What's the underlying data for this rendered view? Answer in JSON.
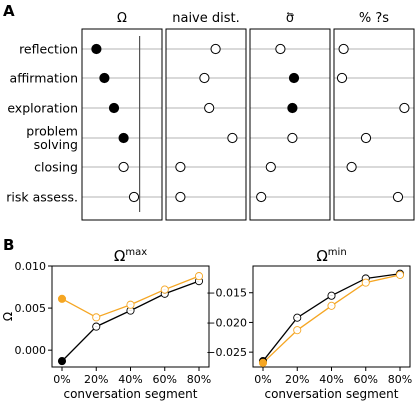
{
  "panelA": {
    "letter": "A",
    "row_labels": [
      [
        "reflection"
      ],
      [
        "affirmation"
      ],
      [
        "exploration"
      ],
      [
        "problem",
        "solving"
      ],
      [
        "closing"
      ],
      [
        "risk assess."
      ]
    ],
    "columns": [
      {
        "title": "Ω",
        "domain": [
          0,
          1
        ],
        "ref_line": 0.72,
        "values": [
          0.18,
          0.28,
          0.4,
          0.52,
          0.52,
          0.65
        ],
        "filled": [
          true,
          true,
          true,
          true,
          false,
          false
        ]
      },
      {
        "title": "naive dist.",
        "domain": [
          0,
          1
        ],
        "values": [
          0.62,
          0.48,
          0.54,
          0.83,
          0.18,
          0.18
        ],
        "filled": [
          false,
          false,
          false,
          false,
          false,
          false
        ]
      },
      {
        "title": "σ⃖",
        "domain": [
          0,
          1
        ],
        "values": [
          0.38,
          0.55,
          0.53,
          0.53,
          0.26,
          0.14
        ],
        "filled": [
          false,
          true,
          true,
          false,
          false,
          false
        ]
      },
      {
        "title": "% ?s",
        "domain": [
          0,
          1
        ],
        "values": [
          0.12,
          0.1,
          0.88,
          0.4,
          0.22,
          0.8
        ],
        "filled": [
          false,
          false,
          false,
          false,
          false,
          false
        ]
      }
    ]
  },
  "panelB": {
    "letter": "B"
  },
  "colors": {
    "black": "#000000",
    "orange": "#f5a623"
  },
  "chart_data": [
    {
      "type": "line",
      "title": "Ω^max",
      "title_base": "Ω",
      "title_sup": "max",
      "xlabel": "conversation segment",
      "ylabel": "Ω",
      "x": [
        "0%",
        "20%",
        "40%",
        "60%",
        "80%"
      ],
      "ylim": [
        -0.002,
        0.01
      ],
      "yticks": [
        0.0,
        0.005,
        0.01
      ],
      "ytick_labels": [
        "0.000",
        "0.005",
        "0.010"
      ],
      "series": [
        {
          "values": [
            -0.0013,
            0.0028,
            0.0047,
            0.0067,
            0.0082
          ],
          "color": "#000000",
          "marker": "split"
        },
        {
          "values": [
            0.0061,
            0.0039,
            0.0054,
            0.0072,
            0.0088
          ],
          "color": "#f5a623",
          "marker": "split"
        }
      ]
    },
    {
      "type": "line",
      "title": "Ω^min",
      "title_base": "Ω",
      "title_sup": "min",
      "xlabel": "conversation segment",
      "ylabel": "",
      "x": [
        "0%",
        "20%",
        "40%",
        "60%",
        "80%"
      ],
      "ylim": [
        -0.0275,
        -0.0105
      ],
      "yticks": [
        -0.025,
        -0.02,
        -0.015
      ],
      "ytick_labels": [
        "−0.025",
        "−0.020",
        "−0.015"
      ],
      "series": [
        {
          "values": [
            -0.0265,
            -0.0192,
            -0.0155,
            -0.0126,
            -0.0118
          ],
          "color": "#000000",
          "marker": "split"
        },
        {
          "values": [
            -0.0268,
            -0.0213,
            -0.0172,
            -0.0133,
            -0.012
          ],
          "color": "#f5a623",
          "marker": "split"
        }
      ]
    }
  ]
}
